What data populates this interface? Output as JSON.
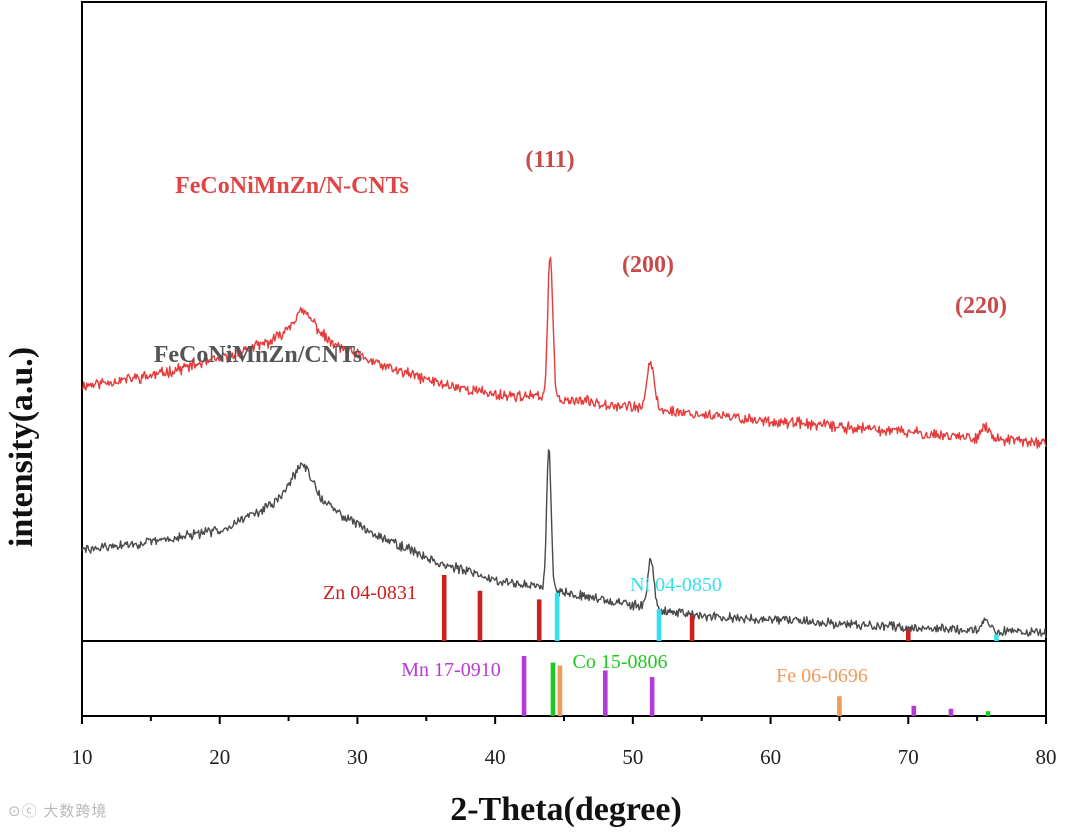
{
  "chart_data": {
    "type": "line",
    "title": "",
    "xlabel": "2-Theta(degree)",
    "ylabel": "intensity(a.u.)",
    "xlim": [
      10,
      80
    ],
    "xticks": [
      10,
      20,
      30,
      40,
      50,
      60,
      70,
      80
    ],
    "grid": false,
    "series": [
      {
        "name": "FeCoNiMnZn/N-CNTs",
        "color": "#e53b3b",
        "noise": 0.35,
        "seed": 11,
        "points": [
          [
            10,
            7.4
          ],
          [
            15,
            7.85
          ],
          [
            20,
            8.6
          ],
          [
            24,
            9.45
          ],
          [
            26,
            10.15
          ],
          [
            28,
            9.3
          ],
          [
            32,
            8.25
          ],
          [
            36,
            7.5
          ],
          [
            40,
            7.0
          ],
          [
            43,
            6.9
          ],
          [
            48,
            6.6
          ],
          [
            55,
            6.1
          ],
          [
            60,
            5.8
          ],
          [
            70,
            5.3
          ],
          [
            80,
            4.8
          ]
        ],
        "peaks": [
          [
            26.1,
            0.6,
            0.9
          ],
          [
            44.0,
            6.5,
            0.18
          ],
          [
            51.3,
            2.1,
            0.25
          ],
          [
            75.6,
            0.5,
            0.3
          ]
        ]
      },
      {
        "name": "FeCoNiMnZn/CNTs",
        "color": "#4a4a4a",
        "noise": 0.3,
        "seed": 29,
        "points": [
          [
            10,
            0.0
          ],
          [
            15,
            0.35
          ],
          [
            20,
            0.9
          ],
          [
            24,
            2.1
          ],
          [
            26,
            3.4
          ],
          [
            27.5,
            2.1
          ],
          [
            31,
            0.8
          ],
          [
            36,
            -0.6
          ],
          [
            40,
            -1.35
          ],
          [
            44,
            -1.75
          ],
          [
            50,
            -2.5
          ],
          [
            55,
            -3.0
          ],
          [
            62,
            -3.2
          ],
          [
            70,
            -3.5
          ],
          [
            80,
            -3.75
          ]
        ],
        "peaks": [
          [
            26.1,
            0.5,
            0.8
          ],
          [
            43.9,
            6.4,
            0.16
          ],
          [
            51.3,
            2.2,
            0.22
          ],
          [
            75.6,
            0.5,
            0.3
          ]
        ]
      }
    ],
    "reference_series": [
      {
        "name": "Zn 04-0831",
        "color": "#cc1f1f",
        "panel": "upper",
        "lines": [
          [
            36.3,
            100
          ],
          [
            38.9,
            76
          ],
          [
            43.2,
            63
          ],
          [
            54.3,
            39
          ],
          [
            70.0,
            17
          ]
        ]
      },
      {
        "name": "Ni 04-0850",
        "color": "#33e0ef",
        "panel": "upper",
        "lines": [
          [
            44.5,
            73
          ],
          [
            51.9,
            48
          ],
          [
            76.4,
            10
          ]
        ]
      },
      {
        "name": "Mn 17-0910",
        "color": "#b63ad6",
        "panel": "lower",
        "lines": [
          [
            42.1,
            100
          ],
          [
            48.0,
            76
          ],
          [
            51.4,
            65
          ],
          [
            70.4,
            17
          ],
          [
            73.1,
            12
          ]
        ]
      },
      {
        "name": "Co 15-0806",
        "color": "#1ec91e",
        "panel": "lower",
        "lines": [
          [
            44.2,
            89
          ],
          [
            75.8,
            8
          ]
        ]
      },
      {
        "name": "Fe 06-0696",
        "color": "#ef9a5a",
        "panel": "lower",
        "lines": [
          [
            44.7,
            84
          ],
          [
            65.0,
            33
          ]
        ]
      }
    ],
    "annotations": [
      {
        "text": "FeCoNiMnZn/N-CNTs",
        "color": "#e04444"
      },
      {
        "text": "FeCoNiMnZn/CNTs",
        "color": "#555555"
      },
      {
        "text": "(111)",
        "color": "#c94a4a"
      },
      {
        "text": "(200)",
        "color": "#c94a4a"
      },
      {
        "text": "(220)",
        "color": "#c94a4a"
      },
      {
        "text": "Zn 04-0831",
        "color": "#cc1f1f"
      },
      {
        "text": "Ni 04-0850",
        "color": "#33e0ef"
      },
      {
        "text": "Mn 17-0910",
        "color": "#b63ad6"
      },
      {
        "text": "Co 15-0806",
        "color": "#1ec91e"
      },
      {
        "text": "Fe 06-0696",
        "color": "#ef9a5a"
      }
    ]
  },
  "watermark": "⊙ⓒ 大数跨境"
}
